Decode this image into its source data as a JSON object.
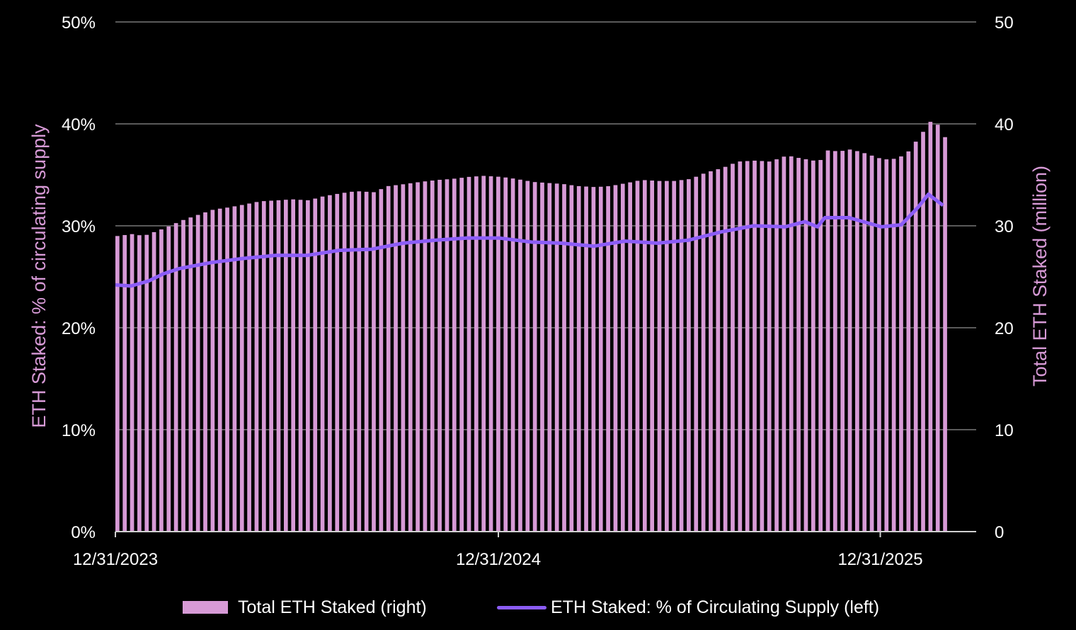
{
  "chart_data": {
    "type": "bar+line",
    "title": "",
    "x_ticks": [
      "12/31/2023",
      "12/31/2024",
      "12/31/2025"
    ],
    "x_range": [
      "2023-12-31",
      "2026-03-01"
    ],
    "left_axis": {
      "label": "ETH Staked: % of circulating supply",
      "ticks": [
        "0%",
        "10%",
        "20%",
        "30%",
        "40%",
        "50%"
      ],
      "range": [
        0,
        50
      ]
    },
    "right_axis": {
      "label": "Total ETH Staked (million)",
      "ticks": [
        "0",
        "10",
        "20",
        "30",
        "40",
        "50"
      ],
      "range": [
        0,
        50
      ]
    },
    "series": [
      {
        "name": "Total ETH Staked (right)",
        "kind": "bar",
        "axis": "right",
        "color": "#d79ad6",
        "points": [
          [
            "2023-12-31",
            29.0
          ],
          [
            "2024-01-15",
            29.2
          ],
          [
            "2024-01-25",
            29.0
          ],
          [
            "2024-02-15",
            29.8
          ],
          [
            "2024-03-01",
            30.5
          ],
          [
            "2024-03-15",
            31.0
          ],
          [
            "2024-04-01",
            31.6
          ],
          [
            "2024-04-15",
            31.8
          ],
          [
            "2024-05-01",
            32.1
          ],
          [
            "2024-05-15",
            32.4
          ],
          [
            "2024-06-01",
            32.5
          ],
          [
            "2024-06-15",
            32.6
          ],
          [
            "2024-07-01",
            32.5
          ],
          [
            "2024-07-15",
            32.9
          ],
          [
            "2024-08-01",
            33.2
          ],
          [
            "2024-08-15",
            33.4
          ],
          [
            "2024-09-01",
            33.3
          ],
          [
            "2024-09-15",
            33.9
          ],
          [
            "2024-10-01",
            34.1
          ],
          [
            "2024-10-15",
            34.3
          ],
          [
            "2024-11-01",
            34.5
          ],
          [
            "2024-11-15",
            34.6
          ],
          [
            "2024-12-01",
            34.8
          ],
          [
            "2024-12-15",
            34.9
          ],
          [
            "2025-01-01",
            34.8
          ],
          [
            "2025-01-15",
            34.6
          ],
          [
            "2025-02-01",
            34.3
          ],
          [
            "2025-02-15",
            34.2
          ],
          [
            "2025-03-01",
            34.1
          ],
          [
            "2025-03-15",
            33.9
          ],
          [
            "2025-04-01",
            33.8
          ],
          [
            "2025-04-15",
            33.9
          ],
          [
            "2025-05-01",
            34.2
          ],
          [
            "2025-05-15",
            34.5
          ],
          [
            "2025-06-01",
            34.4
          ],
          [
            "2025-06-15",
            34.4
          ],
          [
            "2025-07-01",
            34.6
          ],
          [
            "2025-07-15",
            35.2
          ],
          [
            "2025-08-01",
            35.7
          ],
          [
            "2025-08-15",
            36.3
          ],
          [
            "2025-09-01",
            36.4
          ],
          [
            "2025-09-15",
            36.3
          ],
          [
            "2025-10-01",
            36.9
          ],
          [
            "2025-10-15",
            36.6
          ],
          [
            "2025-11-01",
            36.3
          ],
          [
            "2025-11-08",
            37.4
          ],
          [
            "2025-11-20",
            37.3
          ],
          [
            "2025-12-01",
            37.5
          ],
          [
            "2025-12-15",
            37.1
          ],
          [
            "2026-01-01",
            36.5
          ],
          [
            "2026-01-15",
            36.6
          ],
          [
            "2026-01-25",
            37.3
          ],
          [
            "2026-02-05",
            38.8
          ],
          [
            "2026-02-15",
            40.2
          ],
          [
            "2026-02-25",
            39.8
          ],
          [
            "2026-03-01",
            38.7
          ]
        ]
      },
      {
        "name": "ETH Staked: % of Circulating Supply (left)",
        "kind": "line",
        "axis": "left",
        "color": "#8b5cf6",
        "points": [
          [
            "2023-12-31",
            24.2
          ],
          [
            "2024-01-15",
            24.1
          ],
          [
            "2024-02-01",
            24.6
          ],
          [
            "2024-02-15",
            25.3
          ],
          [
            "2024-03-01",
            25.8
          ],
          [
            "2024-04-01",
            26.4
          ],
          [
            "2024-05-01",
            26.8
          ],
          [
            "2024-06-01",
            27.1
          ],
          [
            "2024-07-01",
            27.1
          ],
          [
            "2024-08-01",
            27.6
          ],
          [
            "2024-09-01",
            27.7
          ],
          [
            "2024-10-01",
            28.3
          ],
          [
            "2024-11-01",
            28.6
          ],
          [
            "2024-12-01",
            28.8
          ],
          [
            "2025-01-01",
            28.8
          ],
          [
            "2025-02-01",
            28.4
          ],
          [
            "2025-03-01",
            28.3
          ],
          [
            "2025-04-01",
            28.0
          ],
          [
            "2025-05-01",
            28.5
          ],
          [
            "2025-06-01",
            28.3
          ],
          [
            "2025-07-01",
            28.6
          ],
          [
            "2025-08-01",
            29.4
          ],
          [
            "2025-09-01",
            30.0
          ],
          [
            "2025-10-01",
            29.9
          ],
          [
            "2025-10-20",
            30.4
          ],
          [
            "2025-11-01",
            29.9
          ],
          [
            "2025-11-08",
            30.8
          ],
          [
            "2025-12-01",
            30.8
          ],
          [
            "2026-01-01",
            29.9
          ],
          [
            "2026-01-20",
            30.1
          ],
          [
            "2026-02-05",
            31.8
          ],
          [
            "2026-02-15",
            33.1
          ],
          [
            "2026-03-01",
            32.0
          ]
        ]
      }
    ],
    "legend": [
      {
        "label": "Total ETH Staked (right)",
        "kind": "bar"
      },
      {
        "label": "ETH Staked: % of Circulating Supply (left)",
        "kind": "line"
      }
    ]
  }
}
